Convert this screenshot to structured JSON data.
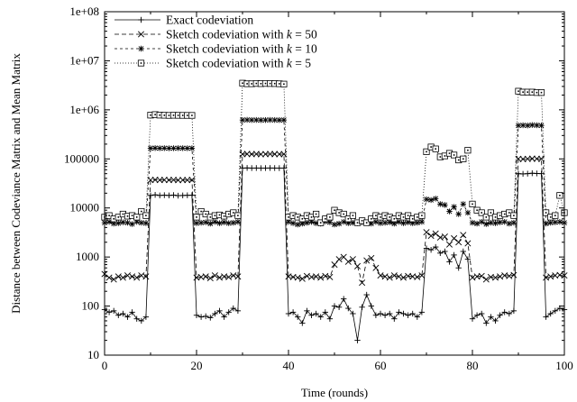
{
  "chart_data": {
    "type": "line",
    "title": "",
    "xlabel": "Time (rounds)",
    "ylabel": "Distance between Codeviance Matrix and Mean Matrix",
    "xlim": [
      0,
      100
    ],
    "ylim": [
      10,
      100000000
    ],
    "yscale": "log",
    "grid": false,
    "legend_position": "top-left",
    "x_ticks": [
      "0",
      "20",
      "40",
      "60",
      "80",
      "100"
    ],
    "y_ticks": [
      "10",
      "100",
      "1000",
      "10000",
      "100000",
      "1e+06",
      "1e+07",
      "1e+08"
    ],
    "x": [
      0,
      1,
      2,
      3,
      4,
      5,
      6,
      7,
      8,
      9,
      10,
      11,
      12,
      13,
      14,
      15,
      16,
      17,
      18,
      19,
      20,
      21,
      22,
      23,
      24,
      25,
      26,
      27,
      28,
      29,
      30,
      31,
      32,
      33,
      34,
      35,
      36,
      37,
      38,
      39,
      40,
      41,
      42,
      43,
      44,
      45,
      46,
      47,
      48,
      49,
      50,
      51,
      52,
      53,
      54,
      55,
      56,
      57,
      58,
      59,
      60,
      61,
      62,
      63,
      64,
      65,
      66,
      67,
      68,
      69,
      70,
      71,
      72,
      73,
      74,
      75,
      76,
      77,
      78,
      79,
      80,
      81,
      82,
      83,
      84,
      85,
      86,
      87,
      88,
      89,
      90,
      91,
      92,
      93,
      94,
      95,
      96,
      97,
      98,
      99,
      100
    ],
    "series": [
      {
        "name": "Exact codeviation",
        "marker": "plus",
        "dash": "",
        "values": [
          85,
          75,
          80,
          65,
          70,
          60,
          75,
          55,
          50,
          60,
          18000,
          18500,
          18000,
          18200,
          18000,
          18300,
          17800,
          18000,
          18100,
          18200,
          65,
          60,
          62,
          58,
          70,
          80,
          60,
          75,
          90,
          80,
          65000,
          65500,
          65000,
          65200,
          64800,
          65000,
          65300,
          65100,
          64900,
          65000,
          70,
          75,
          60,
          45,
          80,
          65,
          70,
          60,
          75,
          55,
          100,
          95,
          140,
          90,
          70,
          20,
          95,
          170,
          100,
          65,
          70,
          65,
          70,
          55,
          75,
          70,
          65,
          70,
          60,
          75,
          1500,
          1400,
          1600,
          1200,
          1300,
          800,
          1100,
          600,
          1300,
          900,
          55,
          65,
          70,
          45,
          60,
          50,
          65,
          75,
          70,
          80,
          50000,
          49500,
          50000,
          51000,
          50500,
          50000,
          60,
          70,
          80,
          90,
          85
        ],
        "color": "#000000"
      },
      {
        "name": "Sketch codeviation with k = 50",
        "marker": "x",
        "dash": "5,3",
        "values": [
          450,
          380,
          350,
          400,
          380,
          420,
          400,
          380,
          420,
          400,
          37000,
          37500,
          37000,
          37200,
          37000,
          37300,
          36800,
          37000,
          37100,
          37200,
          380,
          390,
          400,
          370,
          420,
          380,
          400,
          390,
          420,
          400,
          125000,
          126000,
          125000,
          125500,
          124500,
          125000,
          125800,
          125300,
          124800,
          125000,
          400,
          390,
          380,
          360,
          410,
          390,
          400,
          380,
          410,
          390,
          700,
          900,
          1000,
          800,
          900,
          650,
          300,
          850,
          950,
          600,
          420,
          400,
          380,
          420,
          400,
          380,
          410,
          400,
          390,
          420,
          3200,
          2700,
          3000,
          2500,
          2600,
          1800,
          2400,
          2000,
          2800,
          1900,
          380,
          400,
          410,
          350,
          390,
          380,
          400,
          420,
          410,
          430,
          100000,
          99000,
          100000,
          101000,
          100500,
          100000,
          380,
          400,
          420,
          430,
          420
        ],
        "color": "#000000"
      },
      {
        "name": "Sketch codeviation with k = 10",
        "marker": "star",
        "dash": "3,3",
        "values": [
          5000,
          5200,
          4800,
          4900,
          5100,
          5000,
          4700,
          5200,
          5000,
          4900,
          165000,
          166000,
          165000,
          165500,
          164500,
          165000,
          165800,
          165300,
          164800,
          165000,
          4900,
          5000,
          5100,
          4800,
          5200,
          4900,
          5100,
          4900,
          5000,
          5200,
          620000,
          625000,
          620000,
          622000,
          618000,
          620000,
          623000,
          621000,
          619000,
          620000,
          5200,
          4900,
          4600,
          4800,
          5000,
          5200,
          4900,
          4800,
          5300,
          5100,
          4600,
          4800,
          5200,
          4900,
          5000,
          4900,
          5100,
          5000,
          4800,
          5200,
          4900,
          5000,
          5100,
          4800,
          5200,
          4900,
          5100,
          4900,
          5000,
          5200,
          15000,
          14500,
          15500,
          12000,
          11500,
          8500,
          10500,
          7500,
          12000,
          8000,
          5000,
          4800,
          5200,
          4700,
          5000,
          4900,
          5100,
          5200,
          4800,
          5000,
          480000,
          485000,
          480000,
          490000,
          485000,
          480000,
          4800,
          5000,
          5100,
          5200,
          5000
        ],
        "color": "#000000"
      },
      {
        "name": "Sketch codeviation with k = 5",
        "marker": "square",
        "dash": "1,2",
        "values": [
          6500,
          7000,
          6000,
          6500,
          7500,
          6800,
          7000,
          6500,
          8500,
          7000,
          780000,
          800000,
          780000,
          775000,
          770000,
          775000,
          772000,
          771000,
          770000,
          770000,
          6500,
          8500,
          7500,
          6500,
          7000,
          7200,
          6800,
          7500,
          8000,
          7000,
          3500000,
          3400000,
          3400000,
          3450000,
          3420000,
          3450000,
          3440000,
          3430000,
          3400000,
          3350000,
          6500,
          7000,
          6500,
          6000,
          7000,
          6500,
          7500,
          5000,
          6000,
          6500,
          9000,
          8000,
          7500,
          6000,
          7000,
          5000,
          5500,
          5000,
          6000,
          7000,
          6500,
          7000,
          6500,
          6000,
          7000,
          6500,
          7000,
          6000,
          6500,
          7000,
          140000,
          175000,
          160000,
          110000,
          115000,
          130000,
          120000,
          95000,
          100000,
          150000,
          12000,
          9000,
          8000,
          6500,
          8000,
          6500,
          7000,
          7500,
          8000,
          7000,
          2400000,
          2300000,
          2300000,
          2300000,
          2250000,
          2250000,
          8000,
          6500,
          7000,
          18000,
          8000
        ],
        "color": "#000000"
      }
    ]
  }
}
